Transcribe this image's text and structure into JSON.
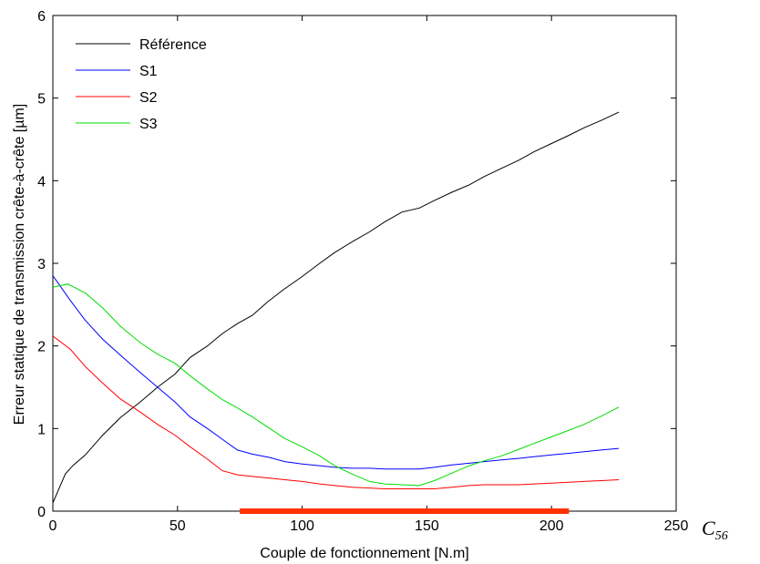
{
  "chart_data": {
    "type": "line",
    "xlabel": "Couple de fonctionnement [N.m]",
    "ylabel": "Erreur statique de transmission crête-à-crête [µm]",
    "xlim": [
      0,
      250
    ],
    "ylim": [
      0,
      6
    ],
    "xticks": [
      0,
      50,
      100,
      150,
      200,
      250
    ],
    "yticks": [
      0,
      1,
      2,
      3,
      4,
      5,
      6
    ],
    "grid": false,
    "legend": "top-left",
    "annotation": {
      "symbol": "C",
      "subscript": "56"
    },
    "highlight": {
      "x_range": [
        75,
        207
      ],
      "color": "#ff3300"
    },
    "series": [
      {
        "name": "Référence",
        "color": "#000000",
        "x": [
          0,
          5,
          8,
          13,
          20,
          27,
          35,
          42,
          49,
          55,
          62,
          68,
          74,
          80,
          86,
          92,
          100,
          107,
          113,
          120,
          127,
          133,
          140,
          147,
          153,
          160,
          167,
          173,
          180,
          187,
          193,
          200,
          207,
          213,
          220,
          227
        ],
        "y": [
          0.1,
          0.45,
          0.55,
          0.68,
          0.92,
          1.13,
          1.32,
          1.5,
          1.66,
          1.86,
          2.0,
          2.15,
          2.27,
          2.37,
          2.53,
          2.67,
          2.84,
          3.0,
          3.13,
          3.26,
          3.38,
          3.5,
          3.62,
          3.67,
          3.76,
          3.86,
          3.95,
          4.05,
          4.15,
          4.25,
          4.35,
          4.45,
          4.55,
          4.64,
          4.73,
          4.83
        ]
      },
      {
        "name": "S1",
        "color": "#0000ff",
        "x": [
          0,
          7,
          13,
          20,
          27,
          35,
          42,
          49,
          55,
          62,
          68,
          74,
          80,
          87,
          93,
          100,
          107,
          113,
          120,
          127,
          133,
          140,
          147,
          153,
          160,
          167,
          173,
          180,
          187,
          193,
          200,
          207,
          213,
          220,
          227
        ],
        "y": [
          2.85,
          2.55,
          2.31,
          2.08,
          1.89,
          1.68,
          1.5,
          1.32,
          1.14,
          1.0,
          0.87,
          0.74,
          0.69,
          0.65,
          0.6,
          0.57,
          0.55,
          0.53,
          0.52,
          0.52,
          0.51,
          0.51,
          0.51,
          0.53,
          0.56,
          0.58,
          0.6,
          0.62,
          0.64,
          0.66,
          0.68,
          0.7,
          0.72,
          0.74,
          0.76
        ]
      },
      {
        "name": "S2",
        "color": "#ff0000",
        "x": [
          0,
          7,
          13,
          20,
          27,
          35,
          42,
          49,
          55,
          62,
          68,
          74,
          80,
          87,
          93,
          100,
          107,
          113,
          120,
          127,
          133,
          140,
          147,
          153,
          160,
          167,
          173,
          180,
          187,
          193,
          200,
          207,
          213,
          220,
          227
        ],
        "y": [
          2.12,
          1.96,
          1.75,
          1.55,
          1.36,
          1.2,
          1.05,
          0.92,
          0.78,
          0.63,
          0.49,
          0.44,
          0.42,
          0.4,
          0.38,
          0.36,
          0.33,
          0.31,
          0.29,
          0.28,
          0.27,
          0.27,
          0.27,
          0.27,
          0.29,
          0.31,
          0.32,
          0.32,
          0.32,
          0.33,
          0.34,
          0.35,
          0.36,
          0.37,
          0.38
        ]
      },
      {
        "name": "S3",
        "color": "#00dd00",
        "x": [
          0,
          6,
          13,
          20,
          27,
          35,
          42,
          49,
          55,
          62,
          68,
          74,
          80,
          87,
          93,
          100,
          107,
          113,
          120,
          127,
          133,
          140,
          147,
          153,
          160,
          167,
          173,
          180,
          187,
          193,
          200,
          207,
          213,
          220,
          227
        ],
        "y": [
          2.71,
          2.75,
          2.64,
          2.46,
          2.24,
          2.04,
          1.9,
          1.79,
          1.64,
          1.48,
          1.35,
          1.25,
          1.14,
          1.0,
          0.88,
          0.78,
          0.67,
          0.55,
          0.45,
          0.36,
          0.33,
          0.32,
          0.31,
          0.37,
          0.46,
          0.55,
          0.61,
          0.67,
          0.75,
          0.82,
          0.9,
          0.98,
          1.05,
          1.15,
          1.26
        ]
      }
    ]
  }
}
